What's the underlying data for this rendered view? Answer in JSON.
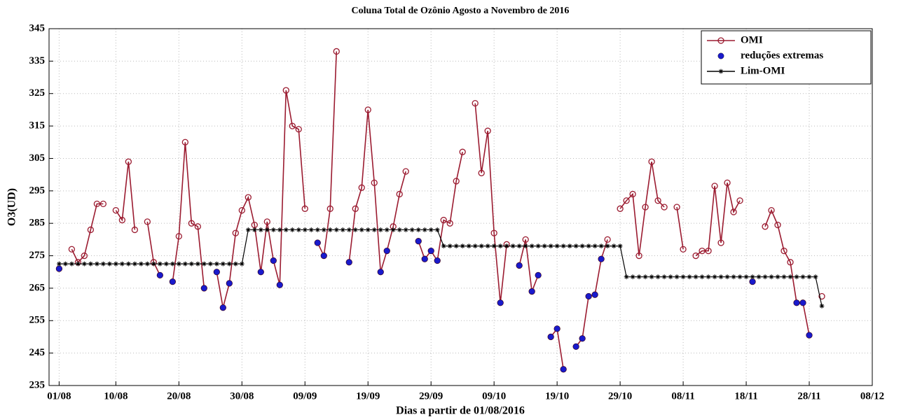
{
  "chart_data": {
    "type": "line",
    "title": "Coluna Total de Ozônio Agosto a Novembro de 2016",
    "xlabel": "Dias a partir de 01/08/2016",
    "ylabel": "O3(UD)",
    "x": [
      1,
      2,
      3,
      4,
      5,
      6,
      7,
      8,
      9,
      10,
      11,
      12,
      13,
      14,
      15,
      16,
      17,
      18,
      19,
      20,
      21,
      22,
      23,
      24,
      25,
      26,
      27,
      28,
      29,
      30,
      31,
      32,
      33,
      34,
      35,
      36,
      37,
      38,
      39,
      40,
      41,
      42,
      43,
      44,
      45,
      46,
      47,
      48,
      49,
      50,
      51,
      52,
      53,
      54,
      55,
      56,
      57,
      58,
      59,
      60,
      61,
      62,
      63,
      64,
      65,
      66,
      67,
      68,
      69,
      70,
      71,
      72,
      73,
      74,
      75,
      76,
      77,
      78,
      79,
      80,
      81,
      82,
      83,
      84,
      85,
      86,
      87,
      88,
      89,
      90,
      91,
      92,
      93,
      94,
      95,
      96,
      97,
      98,
      99,
      100,
      101,
      102,
      103,
      104,
      105,
      106,
      107,
      108,
      109,
      110,
      111,
      112,
      113,
      114,
      115,
      116,
      117,
      118,
      119,
      120,
      121,
      122
    ],
    "series": [
      {
        "name": "OMI",
        "color": "#9b1b30",
        "marker": "circle-open",
        "line": true,
        "values": [
          271,
          null,
          277,
          273,
          275,
          283,
          291,
          291,
          null,
          289,
          286,
          304,
          283,
          null,
          285.5,
          273,
          269,
          null,
          267,
          281,
          310,
          285,
          284,
          265,
          null,
          270,
          259,
          266.5,
          282,
          289,
          293,
          284.5,
          270,
          285.5,
          273.5,
          266,
          326,
          315,
          314,
          289.5,
          null,
          279,
          275,
          289.5,
          338,
          null,
          273,
          289.5,
          296,
          320,
          297.5,
          270,
          276.5,
          284,
          294,
          301,
          null,
          279.5,
          274,
          276.5,
          273.5,
          286,
          285,
          298,
          307,
          null,
          322,
          300.5,
          313.5,
          282,
          260.5,
          278.5,
          null,
          272,
          280,
          264,
          269,
          null,
          250,
          252.5,
          240,
          null,
          247,
          249.5,
          262.5,
          263,
          274,
          280,
          null,
          289.5,
          292,
          294,
          275,
          290,
          304,
          292,
          290,
          null,
          290,
          277,
          null,
          275,
          276.5,
          276.5,
          296.5,
          279,
          297.5,
          288.5,
          292,
          null,
          267,
          null,
          284,
          289,
          284.5,
          276.5,
          273,
          260.5,
          260.5,
          250.5,
          null,
          262.5
        ]
      },
      {
        "name": "reduções extremas",
        "color": "#1a1acc",
        "marker": "dot",
        "line": false,
        "values": [
          271,
          null,
          null,
          null,
          null,
          null,
          null,
          null,
          null,
          null,
          null,
          null,
          null,
          null,
          null,
          null,
          269,
          null,
          267,
          null,
          null,
          null,
          null,
          265,
          null,
          270,
          259,
          266.5,
          null,
          null,
          null,
          null,
          270,
          null,
          273.5,
          266,
          null,
          null,
          null,
          null,
          null,
          279,
          275,
          null,
          null,
          null,
          273,
          null,
          null,
          null,
          null,
          270,
          276.5,
          null,
          null,
          null,
          null,
          279.5,
          274,
          276.5,
          273.5,
          null,
          null,
          null,
          null,
          null,
          null,
          null,
          null,
          null,
          260.5,
          null,
          null,
          272,
          null,
          264,
          269,
          null,
          250,
          252.5,
          240,
          null,
          247,
          249.5,
          262.5,
          263,
          274,
          null,
          null,
          null,
          null,
          null,
          null,
          null,
          null,
          null,
          null,
          null,
          null,
          null,
          null,
          null,
          null,
          null,
          null,
          null,
          null,
          null,
          null,
          null,
          267,
          null,
          null,
          null,
          null,
          null,
          null,
          260.5,
          260.5,
          250.5,
          null,
          null
        ]
      },
      {
        "name": "Lim-OMI",
        "color": "#000000",
        "marker": "asterisk",
        "line": true,
        "values": [
          272.5,
          272.5,
          272.5,
          272.5,
          272.5,
          272.5,
          272.5,
          272.5,
          272.5,
          272.5,
          272.5,
          272.5,
          272.5,
          272.5,
          272.5,
          272.5,
          272.5,
          272.5,
          272.5,
          272.5,
          272.5,
          272.5,
          272.5,
          272.5,
          272.5,
          272.5,
          272.5,
          272.5,
          272.5,
          272.5,
          283,
          283,
          283,
          283,
          283,
          283,
          283,
          283,
          283,
          283,
          283,
          283,
          283,
          283,
          283,
          283,
          283,
          283,
          283,
          283,
          283,
          283,
          283,
          283,
          283,
          283,
          283,
          283,
          283,
          283,
          283,
          278,
          278,
          278,
          278,
          278,
          278,
          278,
          278,
          278,
          278,
          278,
          278,
          278,
          278,
          278,
          278,
          278,
          278,
          278,
          278,
          278,
          278,
          278,
          278,
          278,
          278,
          278,
          278,
          278,
          268.5,
          268.5,
          268.5,
          268.5,
          268.5,
          268.5,
          268.5,
          268.5,
          268.5,
          268.5,
          268.5,
          268.5,
          268.5,
          268.5,
          268.5,
          268.5,
          268.5,
          268.5,
          268.5,
          268.5,
          268.5,
          268.5,
          268.5,
          268.5,
          268.5,
          268.5,
          268.5,
          268.5,
          268.5,
          268.5,
          268.5,
          259.5
        ]
      }
    ],
    "xlim": [
      -0.6,
      130
    ],
    "xticks": [
      {
        "value": 1,
        "label": "01/08"
      },
      {
        "value": 10,
        "label": "10/08"
      },
      {
        "value": 20,
        "label": "20/08"
      },
      {
        "value": 30,
        "label": "30/08"
      },
      {
        "value": 40,
        "label": "09/09"
      },
      {
        "value": 50,
        "label": "19/09"
      },
      {
        "value": 60,
        "label": "29/09"
      },
      {
        "value": 70,
        "label": "09/10"
      },
      {
        "value": 80,
        "label": "19/10"
      },
      {
        "value": 90,
        "label": "29/10"
      },
      {
        "value": 100,
        "label": "08/11"
      },
      {
        "value": 110,
        "label": "18/11"
      },
      {
        "value": 120,
        "label": "28/11"
      },
      {
        "value": 130,
        "label": "08/12"
      }
    ],
    "ylim": [
      235,
      345
    ],
    "yticks": [
      235,
      245,
      255,
      265,
      275,
      285,
      295,
      305,
      315,
      325,
      335,
      345
    ],
    "grid": true,
    "legend": "upper right"
  }
}
